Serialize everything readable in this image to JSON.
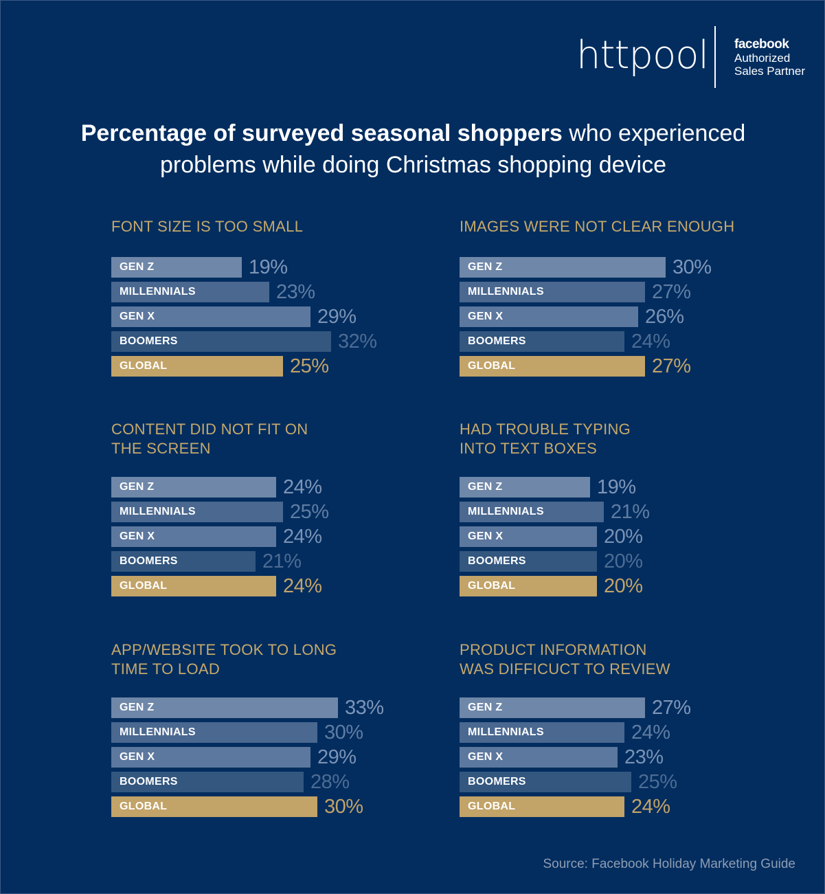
{
  "header": {
    "logo": "httpool",
    "partner_brand": "facebook",
    "partner_line1": "Authorized",
    "partner_line2": "Sales Partner"
  },
  "title": {
    "bold": "Percentage of surveyed seasonal shoppers",
    "line1_rest": " who experienced",
    "line2": "problems while doing Christmas shopping device"
  },
  "colors": {
    "background": "#032d5f",
    "gen_z": "#6f87a8",
    "millennials": "#4a6890",
    "gen_x": "#5d789e",
    "boomers": "#33577f",
    "global": "#c2a368",
    "label_gold": "#c6a96b"
  },
  "chart_data": [
    {
      "type": "bar",
      "title_lines": [
        "FONT SIZE IS TOO SMALL"
      ],
      "categories": [
        "GEN Z",
        "MILLENNIALS",
        "GEN X",
        "BOOMERS",
        "GLOBAL"
      ],
      "values": [
        19,
        23,
        29,
        32,
        25
      ],
      "value_labels": [
        "19%",
        "23%",
        "29%",
        "32%",
        "25%"
      ],
      "unit": "%"
    },
    {
      "type": "bar",
      "title_lines": [
        "IMAGES WERE NOT CLEAR ENOUGH"
      ],
      "categories": [
        "GEN Z",
        "MILLENNIALS",
        "GEN X",
        "BOOMERS",
        "GLOBAL"
      ],
      "values": [
        30,
        27,
        26,
        24,
        27
      ],
      "value_labels": [
        "30%",
        "27%",
        "26%",
        "24%",
        "27%"
      ],
      "unit": "%"
    },
    {
      "type": "bar",
      "title_lines": [
        "CONTENT DID NOT FIT ON",
        "THE SCREEN"
      ],
      "categories": [
        "GEN Z",
        "MILLENNIALS",
        "GEN X",
        "BOOMERS",
        "GLOBAL"
      ],
      "values": [
        24,
        25,
        24,
        21,
        24
      ],
      "value_labels": [
        "24%",
        "25%",
        "24%",
        "21%",
        "24%"
      ],
      "unit": "%"
    },
    {
      "type": "bar",
      "title_lines": [
        "HAD TROUBLE TYPING",
        "INTO TEXT BOXES"
      ],
      "categories": [
        "GEN Z",
        "MILLENNIALS",
        "GEN X",
        "BOOMERS",
        "GLOBAL"
      ],
      "values": [
        19,
        21,
        20,
        20,
        20
      ],
      "value_labels": [
        "19%",
        "21%",
        "20%",
        "20%",
        "20%"
      ],
      "unit": "%"
    },
    {
      "type": "bar",
      "title_lines": [
        "APP/WEBSITE TOOK TO LONG",
        "TIME TO LOAD"
      ],
      "categories": [
        "GEN Z",
        "MILLENNIALS",
        "GEN X",
        "BOOMERS",
        "GLOBAL"
      ],
      "values": [
        33,
        30,
        29,
        28,
        30
      ],
      "value_labels": [
        "33%",
        "30%",
        "29%",
        "28%",
        "30%"
      ],
      "unit": "%"
    },
    {
      "type": "bar",
      "title_lines": [
        "PRODUCT INFORMATION",
        "WAS DIFFICUCT TO REVIEW"
      ],
      "categories": [
        "GEN Z",
        "MILLENNIALS",
        "GEN X",
        "BOOMERS",
        "GLOBAL"
      ],
      "values": [
        27,
        24,
        23,
        25,
        24
      ],
      "value_labels": [
        "27%",
        "24%",
        "23%",
        "25%",
        "24%"
      ],
      "unit": "%"
    }
  ],
  "source": "Source: Facebook Holiday Marketing Guide"
}
